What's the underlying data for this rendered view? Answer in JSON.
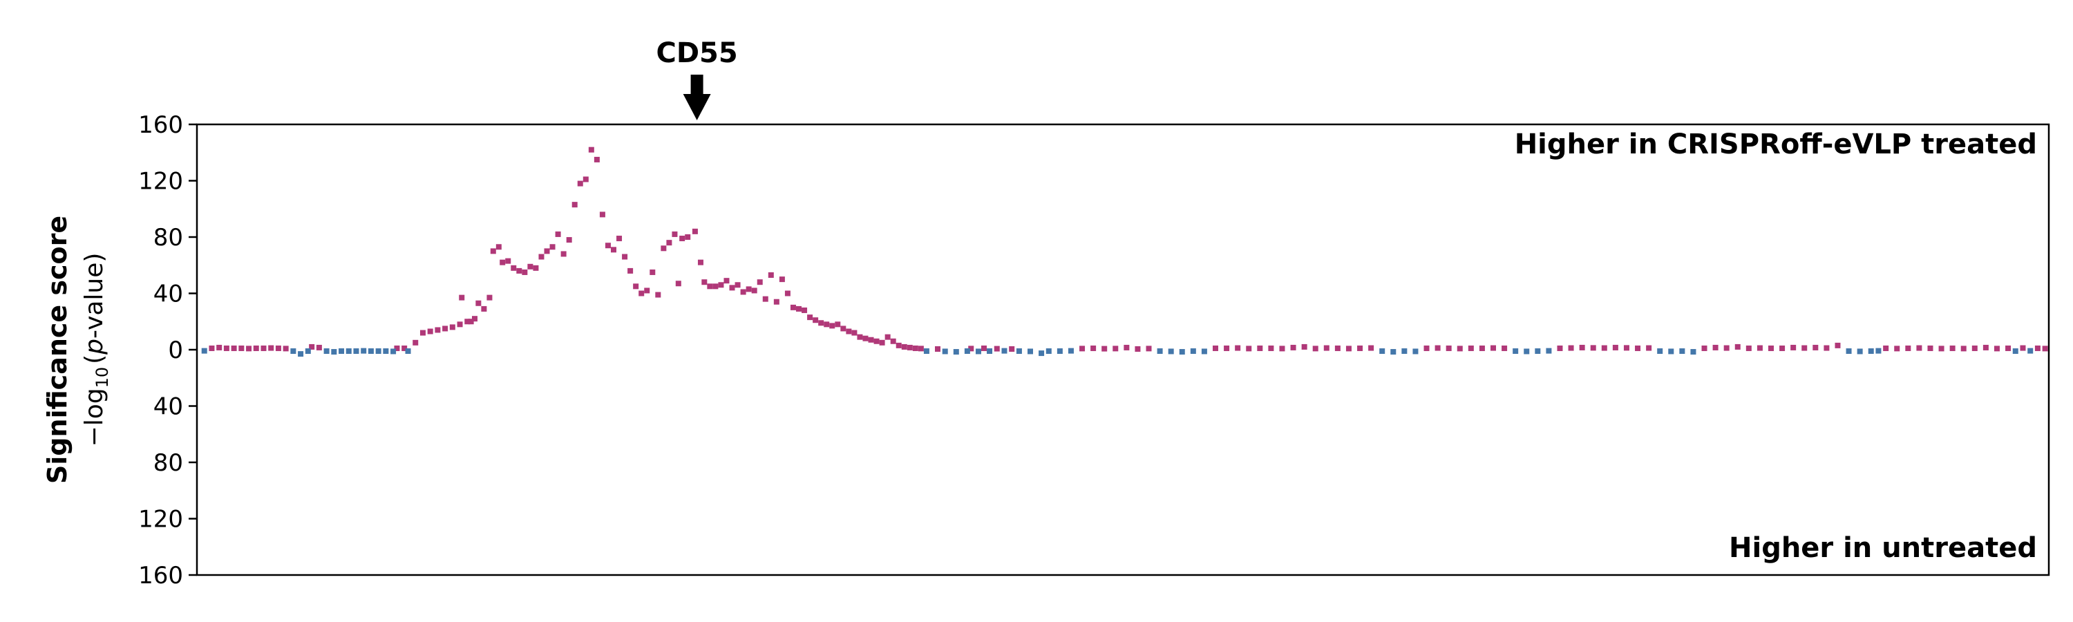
{
  "chart_data": {
    "type": "scatter",
    "ylabel": "Significance score",
    "ylabel_sub_prefix": "−log",
    "ylabel_sub_subscript": "10",
    "ylabel_sub_open": "(",
    "ylabel_sub_italic": "p",
    "ylabel_sub_suffix": "-value)",
    "ylim": [
      -160,
      160
    ],
    "yticks": [
      160,
      120,
      80,
      40,
      0,
      -40,
      -80,
      -120,
      -160
    ],
    "ytick_labels": [
      "160",
      "120",
      "80",
      "40",
      "0",
      "40",
      "80",
      "120",
      "160"
    ],
    "xlim": [
      0,
      1000
    ],
    "grid": false,
    "annotation": {
      "label": "CD55",
      "x": 270
    },
    "upper_label": "Higher in CRISPRoff-eVLP treated",
    "lower_label": "Higher in untreated",
    "colors": {
      "treated": "#b03878",
      "untreated": "#4477aa",
      "axis": "#000000"
    },
    "series": [
      {
        "name": "Higher in CRISPRoff-eVLP treated",
        "color": "#b03878",
        "points": [
          [
            8,
            1
          ],
          [
            12,
            1.5
          ],
          [
            16,
            1
          ],
          [
            20,
            1
          ],
          [
            24,
            1
          ],
          [
            28,
            0.8
          ],
          [
            32,
            1
          ],
          [
            36,
            1
          ],
          [
            40,
            1.2
          ],
          [
            44,
            1
          ],
          [
            48,
            0.8
          ],
          [
            62,
            2
          ],
          [
            66,
            1.5
          ],
          [
            108,
            1
          ],
          [
            112,
            1
          ],
          [
            118,
            5
          ],
          [
            122,
            12
          ],
          [
            126,
            13
          ],
          [
            130,
            14
          ],
          [
            134,
            15
          ],
          [
            138,
            16
          ],
          [
            142,
            18
          ],
          [
            146,
            20
          ],
          [
            150,
            22
          ],
          [
            143,
            37
          ],
          [
            148,
            20
          ],
          [
            152,
            33
          ],
          [
            155,
            29
          ],
          [
            158,
            37
          ],
          [
            160,
            70
          ],
          [
            163,
            73
          ],
          [
            165,
            62
          ],
          [
            168,
            63
          ],
          [
            171,
            58
          ],
          [
            174,
            56
          ],
          [
            177,
            55
          ],
          [
            180,
            59
          ],
          [
            183,
            58
          ],
          [
            186,
            66
          ],
          [
            189,
            70
          ],
          [
            192,
            73
          ],
          [
            195,
            82
          ],
          [
            198,
            68
          ],
          [
            201,
            78
          ],
          [
            204,
            103
          ],
          [
            207,
            118
          ],
          [
            210,
            121
          ],
          [
            213,
            142
          ],
          [
            216,
            135
          ],
          [
            219,
            96
          ],
          [
            222,
            74
          ],
          [
            225,
            71
          ],
          [
            228,
            79
          ],
          [
            231,
            66
          ],
          [
            234,
            56
          ],
          [
            237,
            45
          ],
          [
            240,
            40
          ],
          [
            243,
            42
          ],
          [
            246,
            55
          ],
          [
            249,
            39
          ],
          [
            252,
            72
          ],
          [
            255,
            76
          ],
          [
            258,
            82
          ],
          [
            260,
            47
          ],
          [
            262,
            79
          ],
          [
            265,
            80
          ],
          [
            269,
            84
          ],
          [
            272,
            62
          ],
          [
            274,
            48
          ],
          [
            277,
            45
          ],
          [
            280,
            45
          ],
          [
            283,
            46
          ],
          [
            286,
            49
          ],
          [
            289,
            44
          ],
          [
            292,
            46
          ],
          [
            295,
            41
          ],
          [
            298,
            43
          ],
          [
            301,
            42
          ],
          [
            304,
            48
          ],
          [
            307,
            36
          ],
          [
            310,
            53
          ],
          [
            313,
            34
          ],
          [
            316,
            50
          ],
          [
            319,
            40
          ],
          [
            322,
            30
          ],
          [
            325,
            29
          ],
          [
            328,
            28
          ],
          [
            331,
            23
          ],
          [
            334,
            21
          ],
          [
            337,
            19
          ],
          [
            340,
            18
          ],
          [
            343,
            17
          ],
          [
            346,
            18
          ],
          [
            349,
            15
          ],
          [
            352,
            13
          ],
          [
            355,
            12
          ],
          [
            358,
            9
          ],
          [
            361,
            8
          ],
          [
            364,
            7
          ],
          [
            367,
            6
          ],
          [
            370,
            5
          ],
          [
            373,
            9
          ],
          [
            376,
            6
          ],
          [
            379,
            3
          ],
          [
            382,
            2
          ],
          [
            385,
            1.5
          ],
          [
            388,
            1
          ],
          [
            391,
            0.8
          ],
          [
            400,
            0.5
          ],
          [
            418,
            0.8
          ],
          [
            425,
            1
          ],
          [
            432,
            0.7
          ],
          [
            440,
            0.5
          ],
          [
            478,
            0.8
          ],
          [
            484,
            1
          ],
          [
            490,
            0.7
          ],
          [
            496,
            0.8
          ],
          [
            502,
            1.5
          ],
          [
            508,
            0.5
          ],
          [
            514,
            0.8
          ],
          [
            550,
            1
          ],
          [
            556,
            1
          ],
          [
            562,
            1.2
          ],
          [
            568,
            0.8
          ],
          [
            574,
            1
          ],
          [
            580,
            1
          ],
          [
            586,
            0.8
          ],
          [
            592,
            1.5
          ],
          [
            598,
            2
          ],
          [
            604,
            0.8
          ],
          [
            610,
            1.2
          ],
          [
            616,
            1
          ],
          [
            622,
            0.8
          ],
          [
            628,
            1
          ],
          [
            634,
            1.2
          ],
          [
            664,
            1
          ],
          [
            670,
            1.2
          ],
          [
            676,
            1
          ],
          [
            682,
            0.8
          ],
          [
            688,
            1
          ],
          [
            694,
            1
          ],
          [
            700,
            1.2
          ],
          [
            706,
            1
          ],
          [
            736,
            1
          ],
          [
            742,
            1.2
          ],
          [
            748,
            1.5
          ],
          [
            754,
            1.3
          ],
          [
            760,
            1.2
          ],
          [
            766,
            1.5
          ],
          [
            772,
            1.3
          ],
          [
            778,
            1
          ],
          [
            784,
            1.2
          ],
          [
            814,
            1
          ],
          [
            820,
            1.5
          ],
          [
            826,
            1.2
          ],
          [
            832,
            2
          ],
          [
            838,
            1
          ],
          [
            844,
            1.2
          ],
          [
            850,
            1
          ],
          [
            856,
            1
          ],
          [
            862,
            1.5
          ],
          [
            868,
            1.2
          ],
          [
            874,
            1.5
          ],
          [
            880,
            1.2
          ],
          [
            886,
            3
          ],
          [
            912,
            1
          ],
          [
            918,
            0.8
          ],
          [
            924,
            1
          ],
          [
            930,
            1.2
          ],
          [
            936,
            1
          ],
          [
            942,
            0.8
          ],
          [
            948,
            1
          ],
          [
            954,
            0.8
          ],
          [
            960,
            1
          ],
          [
            966,
            1.5
          ],
          [
            972,
            0.8
          ],
          [
            978,
            1
          ],
          [
            986,
            1.2
          ],
          [
            994,
            1
          ],
          [
            998,
            0.8
          ]
        ]
      },
      {
        "name": "Higher in untreated",
        "color": "#4477aa",
        "points": [
          [
            4,
            -0.8
          ],
          [
            52,
            -1
          ],
          [
            56,
            -3
          ],
          [
            60,
            -1
          ],
          [
            70,
            -1
          ],
          [
            74,
            -1.5
          ],
          [
            78,
            -1
          ],
          [
            82,
            -1
          ],
          [
            86,
            -1
          ],
          [
            90,
            -0.8
          ],
          [
            94,
            -1
          ],
          [
            98,
            -1
          ],
          [
            102,
            -1
          ],
          [
            106,
            -1.2
          ],
          [
            114,
            -1
          ],
          [
            394,
            -1
          ],
          [
            404,
            -1.2
          ],
          [
            410,
            -1.5
          ],
          [
            416,
            -1
          ],
          [
            422,
            -1.2
          ],
          [
            428,
            -1
          ],
          [
            436,
            -0.8
          ],
          [
            444,
            -1
          ],
          [
            450,
            -1.2
          ],
          [
            456,
            -2.5
          ],
          [
            460,
            -1
          ],
          [
            466,
            -1
          ],
          [
            472,
            -0.8
          ],
          [
            520,
            -1
          ],
          [
            526,
            -1.2
          ],
          [
            532,
            -1.5
          ],
          [
            538,
            -1
          ],
          [
            544,
            -1.2
          ],
          [
            640,
            -1
          ],
          [
            646,
            -1.5
          ],
          [
            652,
            -1
          ],
          [
            658,
            -1.2
          ],
          [
            712,
            -1
          ],
          [
            718,
            -1.2
          ],
          [
            724,
            -1
          ],
          [
            730,
            -0.8
          ],
          [
            790,
            -1
          ],
          [
            796,
            -1.2
          ],
          [
            802,
            -1
          ],
          [
            808,
            -1.5
          ],
          [
            892,
            -1
          ],
          [
            898,
            -1.2
          ],
          [
            904,
            -1
          ],
          [
            908,
            -0.8
          ],
          [
            982,
            -1
          ],
          [
            990,
            -0.8
          ]
        ]
      }
    ]
  }
}
